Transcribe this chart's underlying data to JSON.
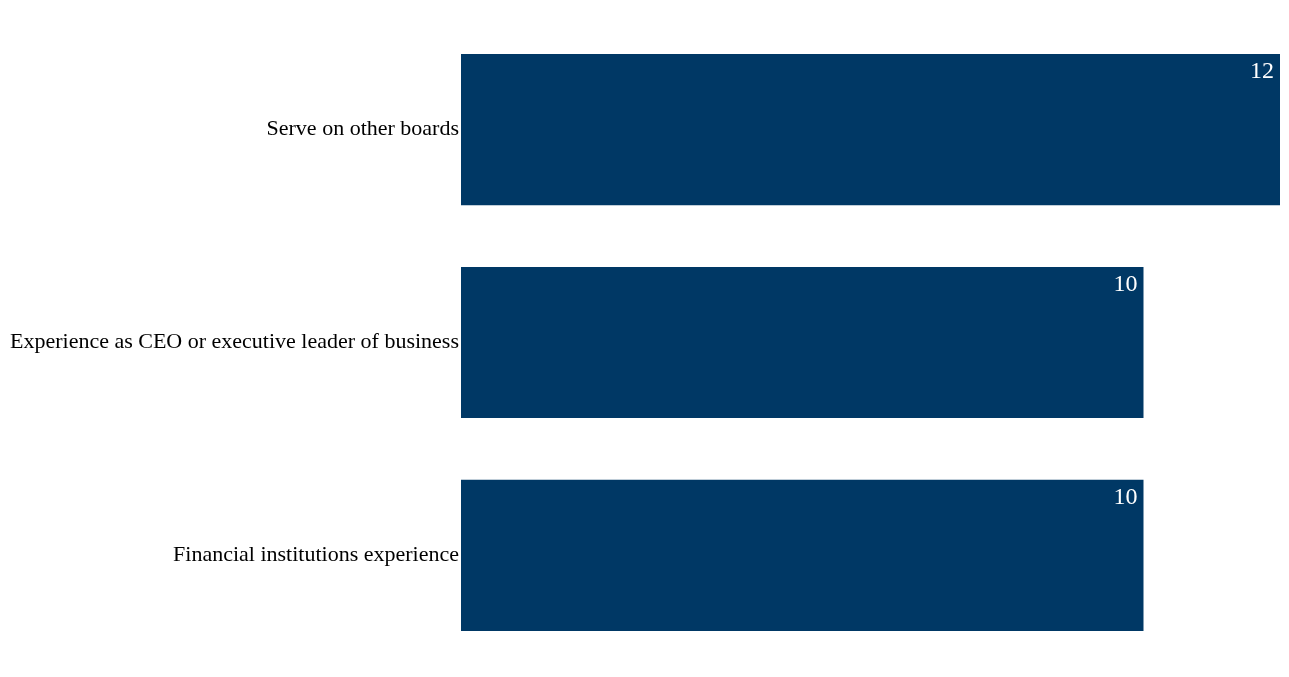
{
  "chart_data": {
    "type": "bar",
    "orientation": "horizontal",
    "categories": [
      "Serve on other boards",
      "Experience as CEO or executive leader of business",
      "Financial institutions experience"
    ],
    "values": [
      12,
      10,
      10
    ],
    "color": "#003865",
    "data_labels": true
  }
}
